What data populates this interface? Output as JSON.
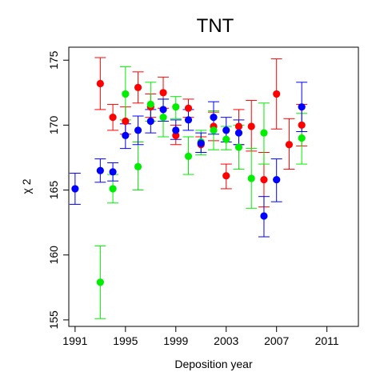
{
  "chart_data": {
    "type": "scatter",
    "title": "TNT",
    "xlabel": "Deposition year",
    "ylabel": "χ 2",
    "xlim": [
      1990.5,
      2013.5
    ],
    "ylim": [
      154.5,
      176
    ],
    "xticks": [
      1991,
      1995,
      1999,
      2003,
      2007,
      2011
    ],
    "yticks": [
      155,
      160,
      165,
      170,
      175
    ],
    "error_bars": true,
    "legend": "none",
    "grid": false,
    "series": [
      {
        "color": "#ff0000",
        "points": [
          {
            "x": 1993,
            "y": 173.2,
            "lo": 171.2,
            "hi": 175.2
          },
          {
            "x": 1994,
            "y": 170.6,
            "lo": 169.6,
            "hi": 171.6
          },
          {
            "x": 1995,
            "y": 170.3,
            "lo": 169.3,
            "hi": 171.4
          },
          {
            "x": 1996,
            "y": 172.9,
            "lo": 171.7,
            "hi": 174.1
          },
          {
            "x": 1997,
            "y": 171.4,
            "lo": 170.6,
            "hi": 172.4
          },
          {
            "x": 1998,
            "y": 172.5,
            "lo": 171.3,
            "hi": 173.7
          },
          {
            "x": 1999,
            "y": 169.2,
            "lo": 168.5,
            "hi": 170.0
          },
          {
            "x": 2000,
            "y": 171.3,
            "lo": 170.6,
            "hi": 172.0
          },
          {
            "x": 2001,
            "y": 168.5,
            "lo": 167.9,
            "hi": 169.1
          },
          {
            "x": 2002,
            "y": 169.9,
            "lo": 168.8,
            "hi": 171.0
          },
          {
            "x": 2003,
            "y": 166.1,
            "lo": 165.1,
            "hi": 167.0
          },
          {
            "x": 2004,
            "y": 169.9,
            "lo": 168.5,
            "hi": 171.2
          },
          {
            "x": 2005,
            "y": 169.9,
            "lo": 168.0,
            "hi": 171.9
          },
          {
            "x": 2006,
            "y": 165.8,
            "lo": 163.7,
            "hi": 167.9
          },
          {
            "x": 2007,
            "y": 172.4,
            "lo": 169.7,
            "hi": 175.1
          },
          {
            "x": 2008,
            "y": 168.5,
            "lo": 166.6,
            "hi": 170.5
          },
          {
            "x": 2009,
            "y": 170.0,
            "lo": 168.4,
            "hi": 171.6
          }
        ]
      },
      {
        "color": "#00ee00",
        "points": [
          {
            "x": 1993,
            "y": 157.9,
            "lo": 155.1,
            "hi": 160.7
          },
          {
            "x": 1994,
            "y": 165.1,
            "lo": 164.0,
            "hi": 166.2
          },
          {
            "x": 1995,
            "y": 172.4,
            "lo": 170.4,
            "hi": 174.5
          },
          {
            "x": 1996,
            "y": 166.8,
            "lo": 165.0,
            "hi": 168.7
          },
          {
            "x": 1997,
            "y": 171.6,
            "lo": 170.3,
            "hi": 173.3
          },
          {
            "x": 1998,
            "y": 170.6,
            "lo": 169.1,
            "hi": 172.0
          },
          {
            "x": 1999,
            "y": 171.4,
            "lo": 170.5,
            "hi": 172.2
          },
          {
            "x": 2000,
            "y": 167.6,
            "lo": 166.2,
            "hi": 169.1
          },
          {
            "x": 2001,
            "y": 168.7,
            "lo": 167.7,
            "hi": 169.6
          },
          {
            "x": 2002,
            "y": 169.6,
            "lo": 168.1,
            "hi": 171.1
          },
          {
            "x": 2003,
            "y": 168.9,
            "lo": 168.1,
            "hi": 169.9
          },
          {
            "x": 2004,
            "y": 168.3,
            "lo": 166.6,
            "hi": 170.0
          },
          {
            "x": 2005,
            "y": 165.9,
            "lo": 163.6,
            "hi": 168.2
          },
          {
            "x": 2006,
            "y": 169.4,
            "lo": 167.0,
            "hi": 171.7
          },
          {
            "x": 2009,
            "y": 169.0,
            "lo": 167.0,
            "hi": 170.9
          }
        ]
      },
      {
        "color": "#0000ff",
        "points": [
          {
            "x": 1991,
            "y": 165.1,
            "lo": 163.9,
            "hi": 166.3
          },
          {
            "x": 1993,
            "y": 166.5,
            "lo": 165.6,
            "hi": 167.4
          },
          {
            "x": 1994,
            "y": 166.4,
            "lo": 165.7,
            "hi": 167.1
          },
          {
            "x": 1995,
            "y": 169.2,
            "lo": 168.2,
            "hi": 170.1
          },
          {
            "x": 1996,
            "y": 169.6,
            "lo": 168.5,
            "hi": 170.7
          },
          {
            "x": 1997,
            "y": 170.3,
            "lo": 169.4,
            "hi": 171.2
          },
          {
            "x": 1998,
            "y": 171.2,
            "lo": 170.3,
            "hi": 172.0
          },
          {
            "x": 1999,
            "y": 169.6,
            "lo": 168.9,
            "hi": 170.4
          },
          {
            "x": 2000,
            "y": 170.4,
            "lo": 169.6,
            "hi": 171.2
          },
          {
            "x": 2001,
            "y": 168.6,
            "lo": 167.9,
            "hi": 169.4
          },
          {
            "x": 2002,
            "y": 170.6,
            "lo": 169.3,
            "hi": 171.8
          },
          {
            "x": 2003,
            "y": 169.6,
            "lo": 168.7,
            "hi": 170.6
          },
          {
            "x": 2004,
            "y": 169.4,
            "lo": 168.5,
            "hi": 170.4
          },
          {
            "x": 2006,
            "y": 163.0,
            "lo": 161.4,
            "hi": 164.5
          },
          {
            "x": 2007,
            "y": 165.8,
            "lo": 164.1,
            "hi": 167.4
          },
          {
            "x": 2009,
            "y": 171.4,
            "lo": 169.5,
            "hi": 173.3
          }
        ]
      }
    ]
  }
}
